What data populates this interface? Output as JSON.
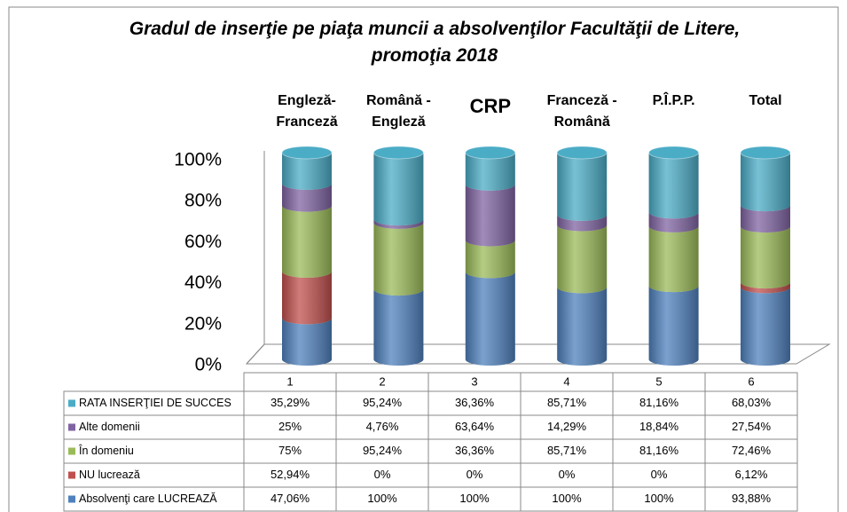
{
  "chart_data": {
    "type": "bar",
    "stacking": "percent",
    "title": "Gradul de inserţie pe piaţa muncii a absolvenţilor Facultăţii de Litere, promoţia 2018",
    "column_labels": [
      "Engleză-Franceză",
      "Română - Engleză",
      "CRP",
      "Franceză - Română",
      "P.Î.P.P.",
      "Total"
    ],
    "categories": [
      "1",
      "2",
      "3",
      "4",
      "5",
      "6"
    ],
    "ylim": [
      0,
      100
    ],
    "yticks": [
      {
        "value": 0,
        "label": "0%"
      },
      {
        "value": 20,
        "label": "20%"
      },
      {
        "value": 40,
        "label": "40%"
      },
      {
        "value": 60,
        "label": "60%"
      },
      {
        "value": 80,
        "label": "80%"
      },
      {
        "value": 100,
        "label": "100%"
      }
    ],
    "series": [
      {
        "name": "RATA INSERŢIEI DE  SUCCES",
        "color": "#4bacc6",
        "values": [
          35.29,
          95.24,
          36.36,
          85.71,
          81.16,
          68.03
        ],
        "value_labels": [
          "35,29%",
          "95,24%",
          "36,36%",
          "85,71%",
          "81,16%",
          "68,03%"
        ]
      },
      {
        "name": "Alte domenii",
        "color": "#8064a2",
        "values": [
          25,
          4.76,
          63.64,
          14.29,
          18.84,
          27.54
        ],
        "value_labels": [
          "25%",
          "4,76%",
          "63,64%",
          "14,29%",
          "18,84%",
          "27,54%"
        ]
      },
      {
        "name": "În  domeniu",
        "color": "#9bbb59",
        "values": [
          75,
          95.24,
          36.36,
          85.71,
          81.16,
          72.46
        ],
        "value_labels": [
          "75%",
          "95,24%",
          "36,36%",
          "85,71%",
          "81,16%",
          "72,46%"
        ]
      },
      {
        "name": "NU lucrează",
        "color": "#c0504d",
        "values": [
          52.94,
          0,
          0,
          0,
          0,
          6.12
        ],
        "value_labels": [
          "52,94%",
          "0%",
          "0%",
          "0%",
          "0%",
          "6,12%"
        ]
      },
      {
        "name": "Absolvenţi care LUCREAZĂ",
        "color": "#4f81bd",
        "values": [
          47.06,
          100,
          100,
          100,
          100,
          93.88
        ],
        "value_labels": [
          "47,06%",
          "100%",
          "100%",
          "100%",
          "100%",
          "93,88%"
        ]
      }
    ]
  }
}
